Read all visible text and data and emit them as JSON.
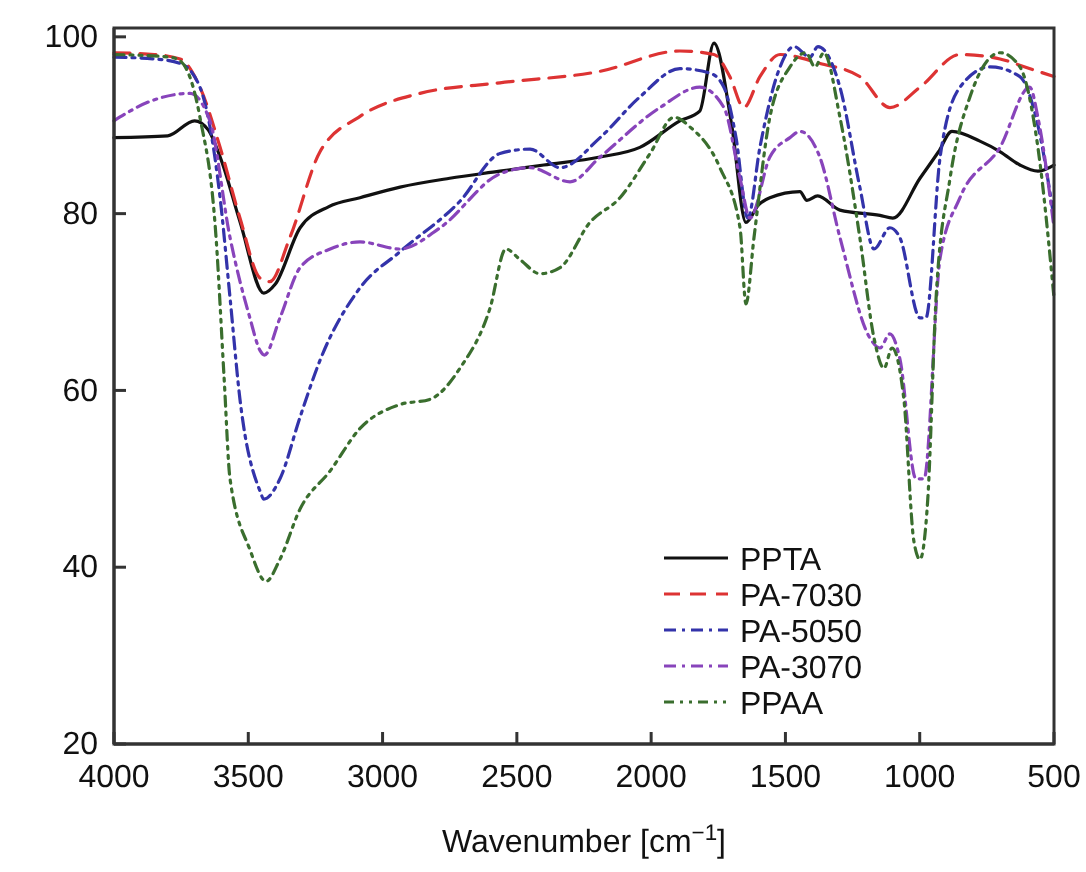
{
  "chart_data": {
    "type": "line",
    "xlabel": "Wavenumber [cm$^{−1}$]",
    "xlim": [
      4000,
      500
    ],
    "xticks": [
      4000,
      3500,
      3000,
      2500,
      2000,
      1500,
      1000,
      500
    ],
    "ylim": [
      20,
      101
    ],
    "yticks": [
      20,
      40,
      60,
      80,
      100
    ],
    "grid": false,
    "legend": "bottom right",
    "marker": "none",
    "series": [
      {
        "name": "PPTA",
        "color": "#111111",
        "line_style": "solid",
        "x": [
          4000,
          3800,
          3700,
          3650,
          3600,
          3530,
          3442,
          3400,
          3307,
          3200,
          3084,
          2935,
          2750,
          2563,
          2400,
          2190,
          2042,
          1893,
          1819,
          1766,
          1700,
          1647,
          1600,
          1558,
          1446,
          1420,
          1380,
          1297,
          1148,
          1100,
          999,
          930,
          880,
          776,
          700,
          627,
          560,
          500
        ],
        "values": [
          88.6,
          88.8,
          90.5,
          89.5,
          86,
          79,
          71,
          72,
          78.4,
          80.8,
          81.8,
          83,
          84,
          84.8,
          85.5,
          86.4,
          87.5,
          90.5,
          91.6,
          99.3,
          90,
          79,
          81,
          81.8,
          82.5,
          81.5,
          82,
          80.4,
          79.8,
          79.5,
          84,
          87,
          89.3,
          88.2,
          87,
          85.5,
          84.8,
          85.5
        ]
      },
      {
        "name": "PA-7030",
        "color": "#dd3333",
        "line_style": "dashed",
        "x": [
          4000,
          3850,
          3754,
          3680,
          3605,
          3531,
          3456,
          3420,
          3345,
          3233,
          3084,
          2861,
          2563,
          2190,
          1893,
          1766,
          1707,
          1655,
          1595,
          1520,
          1372,
          1223,
          1111,
          999,
          850,
          701,
          600,
          500
        ],
        "values": [
          98.2,
          98,
          97.5,
          94.3,
          87.5,
          79.5,
          72.7,
          72.3,
          77.3,
          87,
          91,
          93.6,
          94.8,
          96.1,
          98.4,
          98,
          95.5,
          92,
          95.5,
          98,
          97,
          95.5,
          92,
          94.3,
          98,
          97.5,
          96.5,
          95.5
        ]
      },
      {
        "name": "PA-5050",
        "color": "#3333aa",
        "line_style": "dashdot",
        "x": [
          4000,
          3850,
          3754,
          3680,
          3605,
          3568,
          3531,
          3456,
          3442,
          3382,
          3307,
          3233,
          3084,
          2935,
          2712,
          2563,
          2451,
          2339,
          2190,
          2042,
          1893,
          1781,
          1729,
          1684,
          1640,
          1595,
          1520,
          1468,
          1409,
          1379,
          1297,
          1223,
          1170,
          1111,
          1074,
          999,
          977,
          924,
          850,
          738,
          627,
          567,
          500
        ],
        "values": [
          97.7,
          97.5,
          97,
          94.3,
          81.8,
          70.5,
          59,
          48.6,
          47.7,
          50,
          57,
          63.4,
          71.6,
          75.7,
          81.4,
          86.8,
          87.3,
          85.2,
          88.6,
          93.2,
          96.4,
          95.9,
          94.3,
          88.6,
          79.5,
          87.5,
          96.6,
          98.9,
          97.7,
          98.9,
          94.3,
          83,
          76,
          78.4,
          77.3,
          68.2,
          68.2,
          86.4,
          94.3,
          96.6,
          95.5,
          90.9,
          79.5
        ]
      },
      {
        "name": "PA-3070",
        "color": "#8844bb",
        "line_style": "dashdot",
        "x": [
          4000,
          3866,
          3717,
          3643,
          3568,
          3494,
          3456,
          3440,
          3382,
          3307,
          3195,
          3084,
          2935,
          2786,
          2563,
          2451,
          2302,
          2190,
          1967,
          1819,
          1729,
          1669,
          1632,
          1558,
          1483,
          1446,
          1372,
          1297,
          1185,
          1148,
          1111,
          1074,
          1014,
          984,
          924,
          850,
          701,
          590,
          560,
          500
        ],
        "values": [
          90.5,
          92.7,
          93.6,
          90.5,
          77.3,
          68.2,
          64.5,
          64,
          68.2,
          73.9,
          76,
          76.8,
          76,
          78.4,
          84.5,
          85.2,
          83.6,
          86.4,
          92,
          94.3,
          92,
          84,
          79.5,
          86.4,
          88.6,
          89.3,
          86.4,
          77.3,
          65.9,
          64.8,
          66.4,
          63.6,
          50,
          50,
          75,
          81.8,
          87.5,
          94.3,
          90.9,
          78.4
        ]
      },
      {
        "name": "PPAA",
        "color": "#3a6e2e",
        "line_style": "dotted",
        "x": [
          4000,
          3791,
          3754,
          3680,
          3620,
          3590,
          3568,
          3494,
          3434,
          3382,
          3307,
          3195,
          3084,
          2935,
          2823,
          2712,
          2600,
          2541,
          2488,
          2414,
          2339,
          2228,
          2116,
          2004,
          1915,
          1855,
          1744,
          1669,
          1647,
          1617,
          1558,
          1483,
          1424,
          1390,
          1357,
          1297,
          1223,
          1170,
          1133,
          1103,
          1059,
          1022,
          999,
          970,
          939,
          887,
          813,
          701,
          627,
          560,
          500
        ],
        "values": [
          98,
          97.7,
          97.3,
          90.9,
          77.3,
          61.4,
          50,
          42,
          38.4,
          40.9,
          46.6,
          50.9,
          55.7,
          58.4,
          59,
          62.5,
          69.3,
          76,
          74.8,
          73.2,
          73.9,
          79,
          81.8,
          86.8,
          90.9,
          89.8,
          85.2,
          78.4,
          69.8,
          77.3,
          90.9,
          96.6,
          98.2,
          96.6,
          98.2,
          90.9,
          77.3,
          65.9,
          62.5,
          64.8,
          59,
          43,
          40.9,
          47.7,
          70.5,
          84,
          93.2,
          98.2,
          96.6,
          87.5,
          70.5
        ]
      }
    ]
  }
}
